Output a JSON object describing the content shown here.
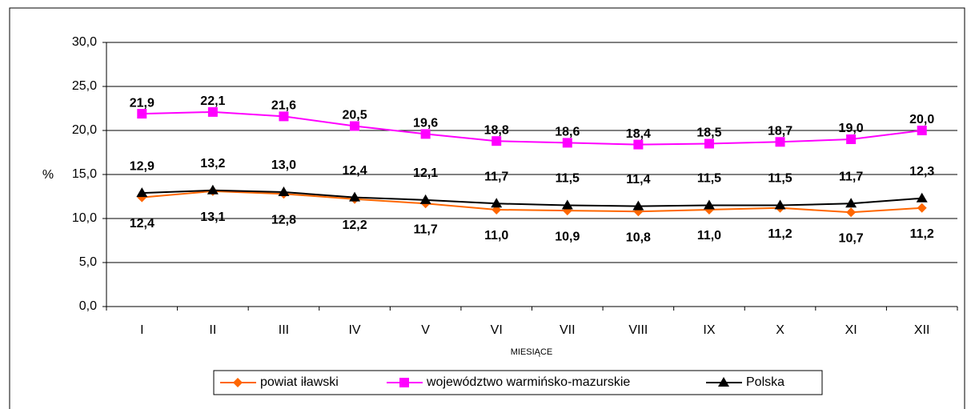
{
  "chart_data": {
    "type": "line",
    "x_label": "MIESIĄCE",
    "y_label": "%",
    "categories": [
      "I",
      "II",
      "III",
      "IV",
      "V",
      "VI",
      "VII",
      "VIII",
      "IX",
      "X",
      "XI",
      "XII"
    ],
    "series": [
      {
        "name": "powiat iławski",
        "color": "#ff6600",
        "marker": "diamond",
        "values": [
          12.4,
          13.1,
          12.8,
          12.2,
          11.7,
          11.0,
          10.9,
          10.8,
          11.0,
          11.2,
          10.7,
          11.2
        ],
        "value_labels": [
          "12,4",
          "13,1",
          "12,8",
          "12,2",
          "11,7",
          "11,0",
          "10,9",
          "10,8",
          "11,0",
          "11,2",
          "10,7",
          "11,2"
        ]
      },
      {
        "name": "województwo warmińsko-mazurskie",
        "color": "#ff00ff",
        "marker": "square",
        "values": [
          21.9,
          22.1,
          21.6,
          20.5,
          19.6,
          18.8,
          18.6,
          18.4,
          18.5,
          18.7,
          19.0,
          20.0
        ],
        "value_labels": [
          "21,9",
          "22,1",
          "21,6",
          "20,5",
          "19,6",
          "18,8",
          "18,6",
          "18,4",
          "18,5",
          "18,7",
          "19,0",
          "20,0"
        ]
      },
      {
        "name": "Polska",
        "color": "#000000",
        "marker": "triangle",
        "values": [
          12.9,
          13.2,
          13.0,
          12.4,
          12.1,
          11.7,
          11.5,
          11.4,
          11.5,
          11.5,
          11.7,
          12.3
        ],
        "value_labels": [
          "12,9",
          "13,2",
          "13,0",
          "12,4",
          "12,1",
          "11,7",
          "11,5",
          "11,4",
          "11,5",
          "11,5",
          "11,7",
          "12,3"
        ]
      }
    ],
    "ylim": [
      0,
      30
    ],
    "yticks": [
      {
        "value": 0,
        "label": "0,0"
      },
      {
        "value": 5,
        "label": "5,0"
      },
      {
        "value": 10,
        "label": "10,0"
      },
      {
        "value": 15,
        "label": "15,0"
      },
      {
        "value": 20,
        "label": "20,0"
      },
      {
        "value": 25,
        "label": "25,0"
      },
      {
        "value": 30,
        "label": "30,0"
      }
    ],
    "grid": true,
    "legend": "bottom"
  }
}
